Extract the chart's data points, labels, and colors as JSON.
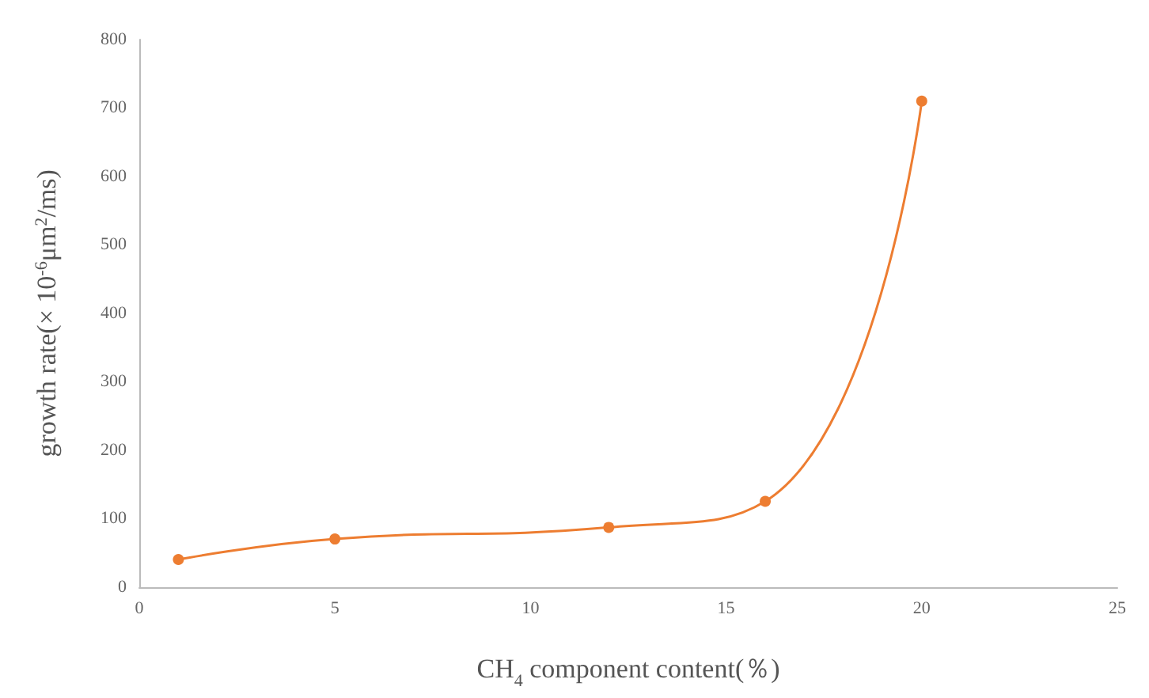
{
  "chart_data": {
    "type": "line",
    "xlabel": "CH$_{4}$ component content(％)",
    "ylabel": "growth rate(× 10$^{-6}$μm$^{2}$/ms)",
    "x": [
      1,
      5,
      12,
      16,
      20
    ],
    "series": [
      {
        "color": "#ed7d31",
        "values": [
          40,
          70,
          87,
          125,
          710
        ]
      }
    ],
    "xlim": [
      0,
      25
    ],
    "xticks": [
      0,
      5,
      10,
      15,
      20,
      25
    ],
    "ylim": [
      0,
      800
    ],
    "yticks": [
      0,
      100,
      200,
      300,
      400,
      500,
      600,
      700,
      800
    ],
    "grid": false,
    "marker": "circle",
    "line_style": "solid"
  }
}
